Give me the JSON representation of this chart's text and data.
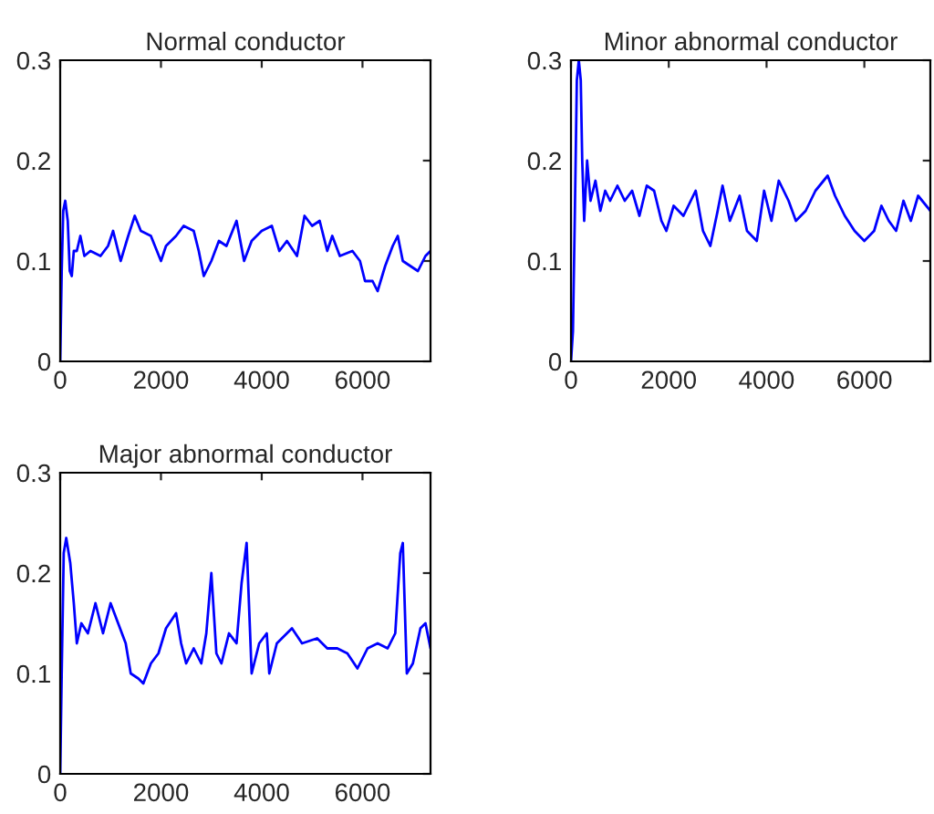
{
  "chart_data": [
    {
      "type": "line",
      "title": "Normal conductor",
      "xlim": [
        0,
        7350
      ],
      "xticks": [
        0,
        2000,
        4000,
        6000
      ],
      "ylim": [
        0,
        0.3
      ],
      "yticks": [
        0,
        0.1,
        0.2,
        0.3
      ],
      "grid": false,
      "legend": false,
      "series": [
        {
          "color": "#0000ff",
          "x": [
            0,
            30,
            60,
            100,
            150,
            190,
            230,
            270,
            330,
            400,
            480,
            600,
            800,
            950,
            1050,
            1200,
            1350,
            1480,
            1600,
            1800,
            2000,
            2100,
            2300,
            2450,
            2650,
            2750,
            2850,
            3000,
            3150,
            3300,
            3500,
            3650,
            3800,
            4000,
            4200,
            4350,
            4500,
            4700,
            4850,
            5000,
            5150,
            5300,
            5400,
            5550,
            5800,
            5950,
            6050,
            6200,
            6300,
            6450,
            6600,
            6700,
            6800,
            6950,
            7100,
            7250,
            7350
          ],
          "values": [
            0.0,
            0.09,
            0.15,
            0.16,
            0.14,
            0.09,
            0.085,
            0.11,
            0.11,
            0.125,
            0.105,
            0.11,
            0.105,
            0.115,
            0.13,
            0.1,
            0.125,
            0.145,
            0.13,
            0.125,
            0.1,
            0.115,
            0.125,
            0.135,
            0.13,
            0.11,
            0.085,
            0.1,
            0.12,
            0.115,
            0.14,
            0.1,
            0.12,
            0.13,
            0.135,
            0.11,
            0.12,
            0.105,
            0.145,
            0.135,
            0.14,
            0.11,
            0.125,
            0.105,
            0.11,
            0.1,
            0.08,
            0.08,
            0.07,
            0.095,
            0.115,
            0.125,
            0.1,
            0.095,
            0.09,
            0.105,
            0.11
          ]
        }
      ]
    },
    {
      "type": "line",
      "title": "Minor abnormal conductor",
      "xlim": [
        0,
        7350
      ],
      "xticks": [
        0,
        2000,
        4000,
        6000
      ],
      "ylim": [
        0,
        0.3
      ],
      "yticks": [
        0,
        0.1,
        0.2,
        0.3
      ],
      "grid": false,
      "legend": false,
      "series": [
        {
          "color": "#0000ff",
          "x": [
            0,
            40,
            80,
            120,
            160,
            200,
            230,
            270,
            330,
            400,
            500,
            600,
            700,
            800,
            950,
            1100,
            1250,
            1400,
            1550,
            1700,
            1850,
            1950,
            2100,
            2300,
            2550,
            2700,
            2850,
            3000,
            3100,
            3250,
            3450,
            3600,
            3800,
            3950,
            4100,
            4250,
            4450,
            4600,
            4800,
            5000,
            5250,
            5400,
            5600,
            5800,
            6000,
            6200,
            6350,
            6500,
            6650,
            6800,
            6950,
            7100,
            7350
          ],
          "values": [
            0,
            0.03,
            0.15,
            0.28,
            0.3,
            0.28,
            0.2,
            0.14,
            0.2,
            0.16,
            0.18,
            0.15,
            0.17,
            0.16,
            0.175,
            0.16,
            0.17,
            0.145,
            0.175,
            0.17,
            0.14,
            0.13,
            0.155,
            0.145,
            0.17,
            0.13,
            0.115,
            0.15,
            0.175,
            0.14,
            0.165,
            0.13,
            0.12,
            0.17,
            0.14,
            0.18,
            0.16,
            0.14,
            0.15,
            0.17,
            0.185,
            0.165,
            0.145,
            0.13,
            0.12,
            0.13,
            0.155,
            0.14,
            0.13,
            0.16,
            0.14,
            0.165,
            0.15
          ]
        }
      ]
    },
    {
      "type": "line",
      "title": "Major abnormal conductor",
      "xlim": [
        0,
        7350
      ],
      "xticks": [
        0,
        2000,
        4000,
        6000
      ],
      "ylim": [
        0,
        0.3
      ],
      "yticks": [
        0,
        0.1,
        0.2,
        0.3
      ],
      "grid": false,
      "legend": false,
      "series": [
        {
          "color": "#0000ff",
          "x": [
            0,
            30,
            70,
            120,
            200,
            270,
            330,
            420,
            550,
            700,
            850,
            1000,
            1150,
            1300,
            1400,
            1550,
            1650,
            1800,
            1950,
            2100,
            2300,
            2400,
            2500,
            2650,
            2800,
            2900,
            3000,
            3100,
            3200,
            3350,
            3500,
            3600,
            3700,
            3800,
            3950,
            4100,
            4150,
            4300,
            4600,
            4800,
            5100,
            5300,
            5500,
            5700,
            5900,
            6100,
            6300,
            6500,
            6650,
            6750,
            6800,
            6880,
            7000,
            7150,
            7250,
            7350
          ],
          "values": [
            0,
            0.1,
            0.22,
            0.235,
            0.21,
            0.17,
            0.13,
            0.15,
            0.14,
            0.17,
            0.14,
            0.17,
            0.15,
            0.13,
            0.1,
            0.095,
            0.09,
            0.11,
            0.12,
            0.145,
            0.16,
            0.13,
            0.11,
            0.125,
            0.11,
            0.14,
            0.2,
            0.12,
            0.11,
            0.14,
            0.13,
            0.19,
            0.23,
            0.1,
            0.13,
            0.14,
            0.1,
            0.13,
            0.145,
            0.13,
            0.135,
            0.125,
            0.125,
            0.12,
            0.105,
            0.125,
            0.13,
            0.125,
            0.14,
            0.22,
            0.23,
            0.1,
            0.11,
            0.145,
            0.15,
            0.125
          ]
        }
      ]
    }
  ]
}
